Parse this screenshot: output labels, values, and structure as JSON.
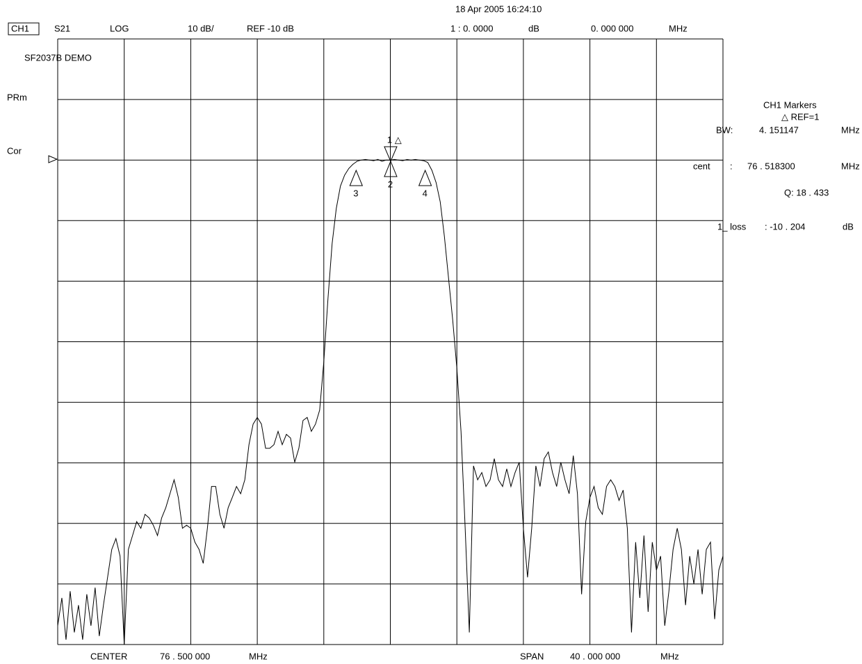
{
  "chart_data": {
    "type": "line",
    "title": "SF2037B DEMO",
    "date": "18 Apr 2005  16:24:10",
    "channel": "CH1",
    "parameter": "S21",
    "format": "LOG",
    "scale": "10 dB/",
    "reference": "REF -10 dB",
    "marker_readout": "1 :  0. 0000",
    "marker_readout_unit": "dB",
    "marker_freq": "0. 000   000",
    "marker_freq_unit": "MHz",
    "side_labels": [
      "PRm",
      "Cor"
    ],
    "panel": {
      "title": "CH1   Markers",
      "ref": "△ REF=1",
      "bw_label": "BW:",
      "bw_value": "4. 151147",
      "bw_unit": "MHz",
      "cent_label": "cent",
      "cent_sep": ":",
      "cent_value": "76 . 518300",
      "cent_unit": "MHz",
      "q": "Q:  18 . 433",
      "loss_label": "1_ loss",
      "loss_value": ": -10  . 204",
      "loss_unit": "dB"
    },
    "footer": {
      "center_label": "CENTER",
      "center_value": "76 . 500   000",
      "center_unit": "MHz",
      "span_label": "SPAN",
      "span_value": "40 . 000   000",
      "span_unit": "MHz"
    },
    "xlim": [
      56.5,
      96.5
    ],
    "ylim": [
      -90,
      10
    ],
    "color": "#000000",
    "markers": [
      {
        "label": "1 △",
        "x": 76.518,
        "y": -10.2
      },
      {
        "label": "2",
        "x": 76.518,
        "y": -10.2
      },
      {
        "label": "3",
        "x": 74.443,
        "y": -11.7
      },
      {
        "label": "4",
        "x": 78.594,
        "y": -11.7
      }
    ],
    "x": [
      56.5,
      56.75,
      57,
      57.25,
      57.5,
      57.75,
      58,
      58.25,
      58.5,
      58.75,
      59,
      59.25,
      59.5,
      59.75,
      60,
      60.25,
      60.5,
      60.75,
      61,
      61.25,
      61.5,
      61.75,
      62,
      62.25,
      62.5,
      62.75,
      63,
      63.25,
      63.5,
      63.75,
      64,
      64.25,
      64.5,
      64.75,
      65,
      65.25,
      65.5,
      65.75,
      66,
      66.25,
      66.5,
      66.75,
      67,
      67.25,
      67.5,
      67.75,
      68,
      68.25,
      68.5,
      68.75,
      69,
      69.25,
      69.5,
      69.75,
      70,
      70.25,
      70.5,
      70.75,
      71,
      71.25,
      71.5,
      71.75,
      72,
      72.25,
      72.5,
      72.75,
      73,
      73.25,
      73.5,
      73.75,
      74,
      74.25,
      74.5,
      74.75,
      75,
      75.25,
      75.5,
      75.75,
      76,
      76.25,
      76.5,
      76.75,
      77,
      77.25,
      77.5,
      77.75,
      78,
      78.25,
      78.5,
      78.75,
      79,
      79.25,
      79.5,
      79.75,
      80,
      80.25,
      80.5,
      80.75,
      81,
      81.25,
      81.5,
      81.75,
      82,
      82.25,
      82.5,
      82.75,
      83,
      83.25,
      83.5,
      83.75,
      84,
      84.25,
      84.5,
      84.75,
      85,
      85.25,
      85.5,
      85.75,
      86,
      86.25,
      86.5,
      86.75,
      87,
      87.25,
      87.5,
      87.75,
      88,
      88.25,
      88.5,
      88.75,
      89,
      89.25,
      89.5,
      89.75,
      90,
      90.25,
      90.5,
      90.75,
      91,
      91.25,
      91.5,
      91.75,
      92,
      92.25,
      92.5,
      92.75,
      93,
      93.25,
      93.5,
      93.75,
      94,
      94.25,
      94.5,
      94.75,
      95,
      95.25,
      95.5,
      95.75,
      96,
      96.25,
      96.5
    ],
    "values": [
      -86.9,
      -82.3,
      -89.2,
      -81.2,
      -88.0,
      -83.5,
      -89.2,
      -81.7,
      -86.9,
      -80.6,
      -88.6,
      -83.5,
      -78.9,
      -74.3,
      -72.5,
      -75.4,
      -90.0,
      -74.3,
      -72.0,
      -69.7,
      -70.8,
      -68.5,
      -69.1,
      -70.3,
      -72.0,
      -69.1,
      -67.4,
      -65.1,
      -62.8,
      -65.7,
      -70.8,
      -70.3,
      -70.8,
      -73.1,
      -74.3,
      -76.6,
      -70.8,
      -63.9,
      -63.9,
      -68.5,
      -70.8,
      -67.4,
      -65.7,
      -63.9,
      -65.1,
      -62.8,
      -57.0,
      -53.6,
      -52.5,
      -53.6,
      -57.6,
      -57.6,
      -57.0,
      -54.8,
      -57.0,
      -55.3,
      -55.9,
      -59.9,
      -57.6,
      -53.0,
      -52.5,
      -54.8,
      -53.6,
      -51.3,
      -43.3,
      -32.9,
      -23.8,
      -18.0,
      -14.3,
      -12.5,
      -11.4,
      -10.7,
      -10.2,
      -10.0,
      -9.9,
      -10.0,
      -10.1,
      -9.9,
      -10.2,
      -10.0,
      -10.0,
      -9.9,
      -10.0,
      -10.1,
      -9.9,
      -10.0,
      -9.9,
      -10.0,
      -10.1,
      -10.4,
      -11.7,
      -13.7,
      -16.9,
      -22.6,
      -29.5,
      -36.4,
      -44.4,
      -54.8,
      -70.8,
      -88.0,
      -60.5,
      -62.8,
      -61.6,
      -63.9,
      -62.8,
      -59.3,
      -62.8,
      -63.9,
      -61.0,
      -63.9,
      -61.6,
      -59.9,
      -70.8,
      -78.9,
      -70.8,
      -60.5,
      -63.9,
      -59.3,
      -58.2,
      -61.6,
      -63.9,
      -59.9,
      -62.8,
      -65.1,
      -58.8,
      -65.1,
      -81.7,
      -69.7,
      -65.7,
      -63.9,
      -67.4,
      -68.5,
      -63.9,
      -62.8,
      -63.9,
      -66.2,
      -64.5,
      -70.8,
      -88.0,
      -73.1,
      -82.3,
      -72.0,
      -84.6,
      -73.1,
      -77.7,
      -75.4,
      -86.9,
      -81.2,
      -74.3,
      -70.8,
      -74.3,
      -83.5,
      -75.4,
      -80.0,
      -74.3,
      -81.7,
      -74.3,
      -73.1,
      -85.8,
      -77.7,
      -75.4
    ]
  }
}
